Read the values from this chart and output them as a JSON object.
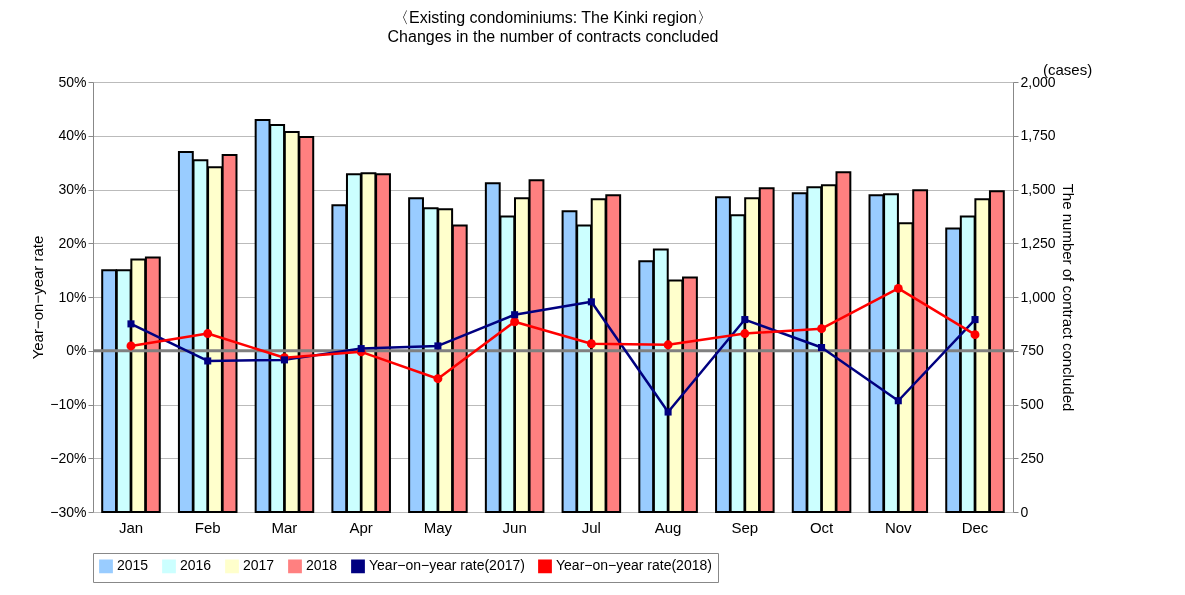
{
  "chart_data": {
    "type": "bar",
    "title": "〈Existing condominiums: The Kinki region〉",
    "subtitle": "Changes in the number of contracts concluded",
    "ylabel": "Year−on−year rate",
    "y2label": "The number of contract concluded",
    "annotations": [
      "(cases)"
    ],
    "categories": [
      "Jan",
      "Feb",
      "Mar",
      "Apr",
      "May",
      "Jun",
      "Jul",
      "Aug",
      "Sep",
      "Oct",
      "Nov",
      "Dec"
    ],
    "series": [
      {
        "name": "2015",
        "axis": "y2",
        "color": "#99ccff",
        "values": [
          1124,
          1674,
          1823,
          1427,
          1459,
          1529,
          1399,
          1166,
          1464,
          1483,
          1473,
          1319
        ]
      },
      {
        "name": "2016",
        "axis": "y2",
        "color": "#ccffff",
        "values": [
          1124,
          1636,
          1800,
          1571,
          1413,
          1375,
          1333,
          1221,
          1380,
          1510,
          1478,
          1375
        ]
      },
      {
        "name": "2017",
        "axis": "y2",
        "color": "#ffffcc",
        "values": [
          1175,
          1604,
          1767,
          1576,
          1408,
          1459,
          1455,
          1077,
          1459,
          1520,
          1343,
          1455
        ]
      },
      {
        "name": "2018",
        "axis": "y2",
        "color": "#ff8080",
        "values": [
          1184,
          1660,
          1744,
          1571,
          1333,
          1543,
          1473,
          1091,
          1506,
          1580,
          1497,
          1492
        ]
      },
      {
        "name": "Year−on−year rate(2017)",
        "type": "line",
        "axis": "y",
        "marker": "square",
        "color": "#000080",
        "values": [
          5.0,
          -1.9,
          -1.7,
          0.4,
          0.9,
          6.7,
          9.1,
          -11.4,
          5.8,
          0.6,
          -9.3,
          5.8
        ]
      },
      {
        "name": "Year−on−year rate(2018)",
        "type": "line",
        "axis": "y",
        "marker": "circle",
        "color": "#ff0000",
        "values": [
          0.9,
          3.2,
          -1.3,
          -0.2,
          -5.2,
          5.4,
          1.3,
          1.1,
          3.2,
          4.1,
          11.6,
          3.0
        ]
      }
    ],
    "ylim": [
      -30,
      50
    ],
    "yticks": [
      {
        "value": -30,
        "label": "−30%"
      },
      {
        "value": -20,
        "label": "−20%"
      },
      {
        "value": -10,
        "label": "−10%"
      },
      {
        "value": 0,
        "label": "0%"
      },
      {
        "value": 10,
        "label": "10%"
      },
      {
        "value": 20,
        "label": "20%"
      },
      {
        "value": 30,
        "label": "30%"
      },
      {
        "value": 40,
        "label": "40%"
      },
      {
        "value": 50,
        "label": "50%"
      }
    ],
    "y2lim": [
      0,
      2000
    ],
    "y2ticks": [
      0,
      250,
      500,
      750,
      {
        "value": 1000,
        "label": "1,000"
      },
      {
        "value": 1250,
        "label": "1,250"
      },
      {
        "value": 1500,
        "label": "1,500"
      },
      {
        "value": 1750,
        "label": "1,750"
      },
      {
        "value": 2000,
        "label": "2,000"
      }
    ],
    "ref_lines": [
      {
        "axis": "y",
        "value": 0,
        "color": "#808080"
      }
    ],
    "grid": "y",
    "legend": "bottom"
  }
}
